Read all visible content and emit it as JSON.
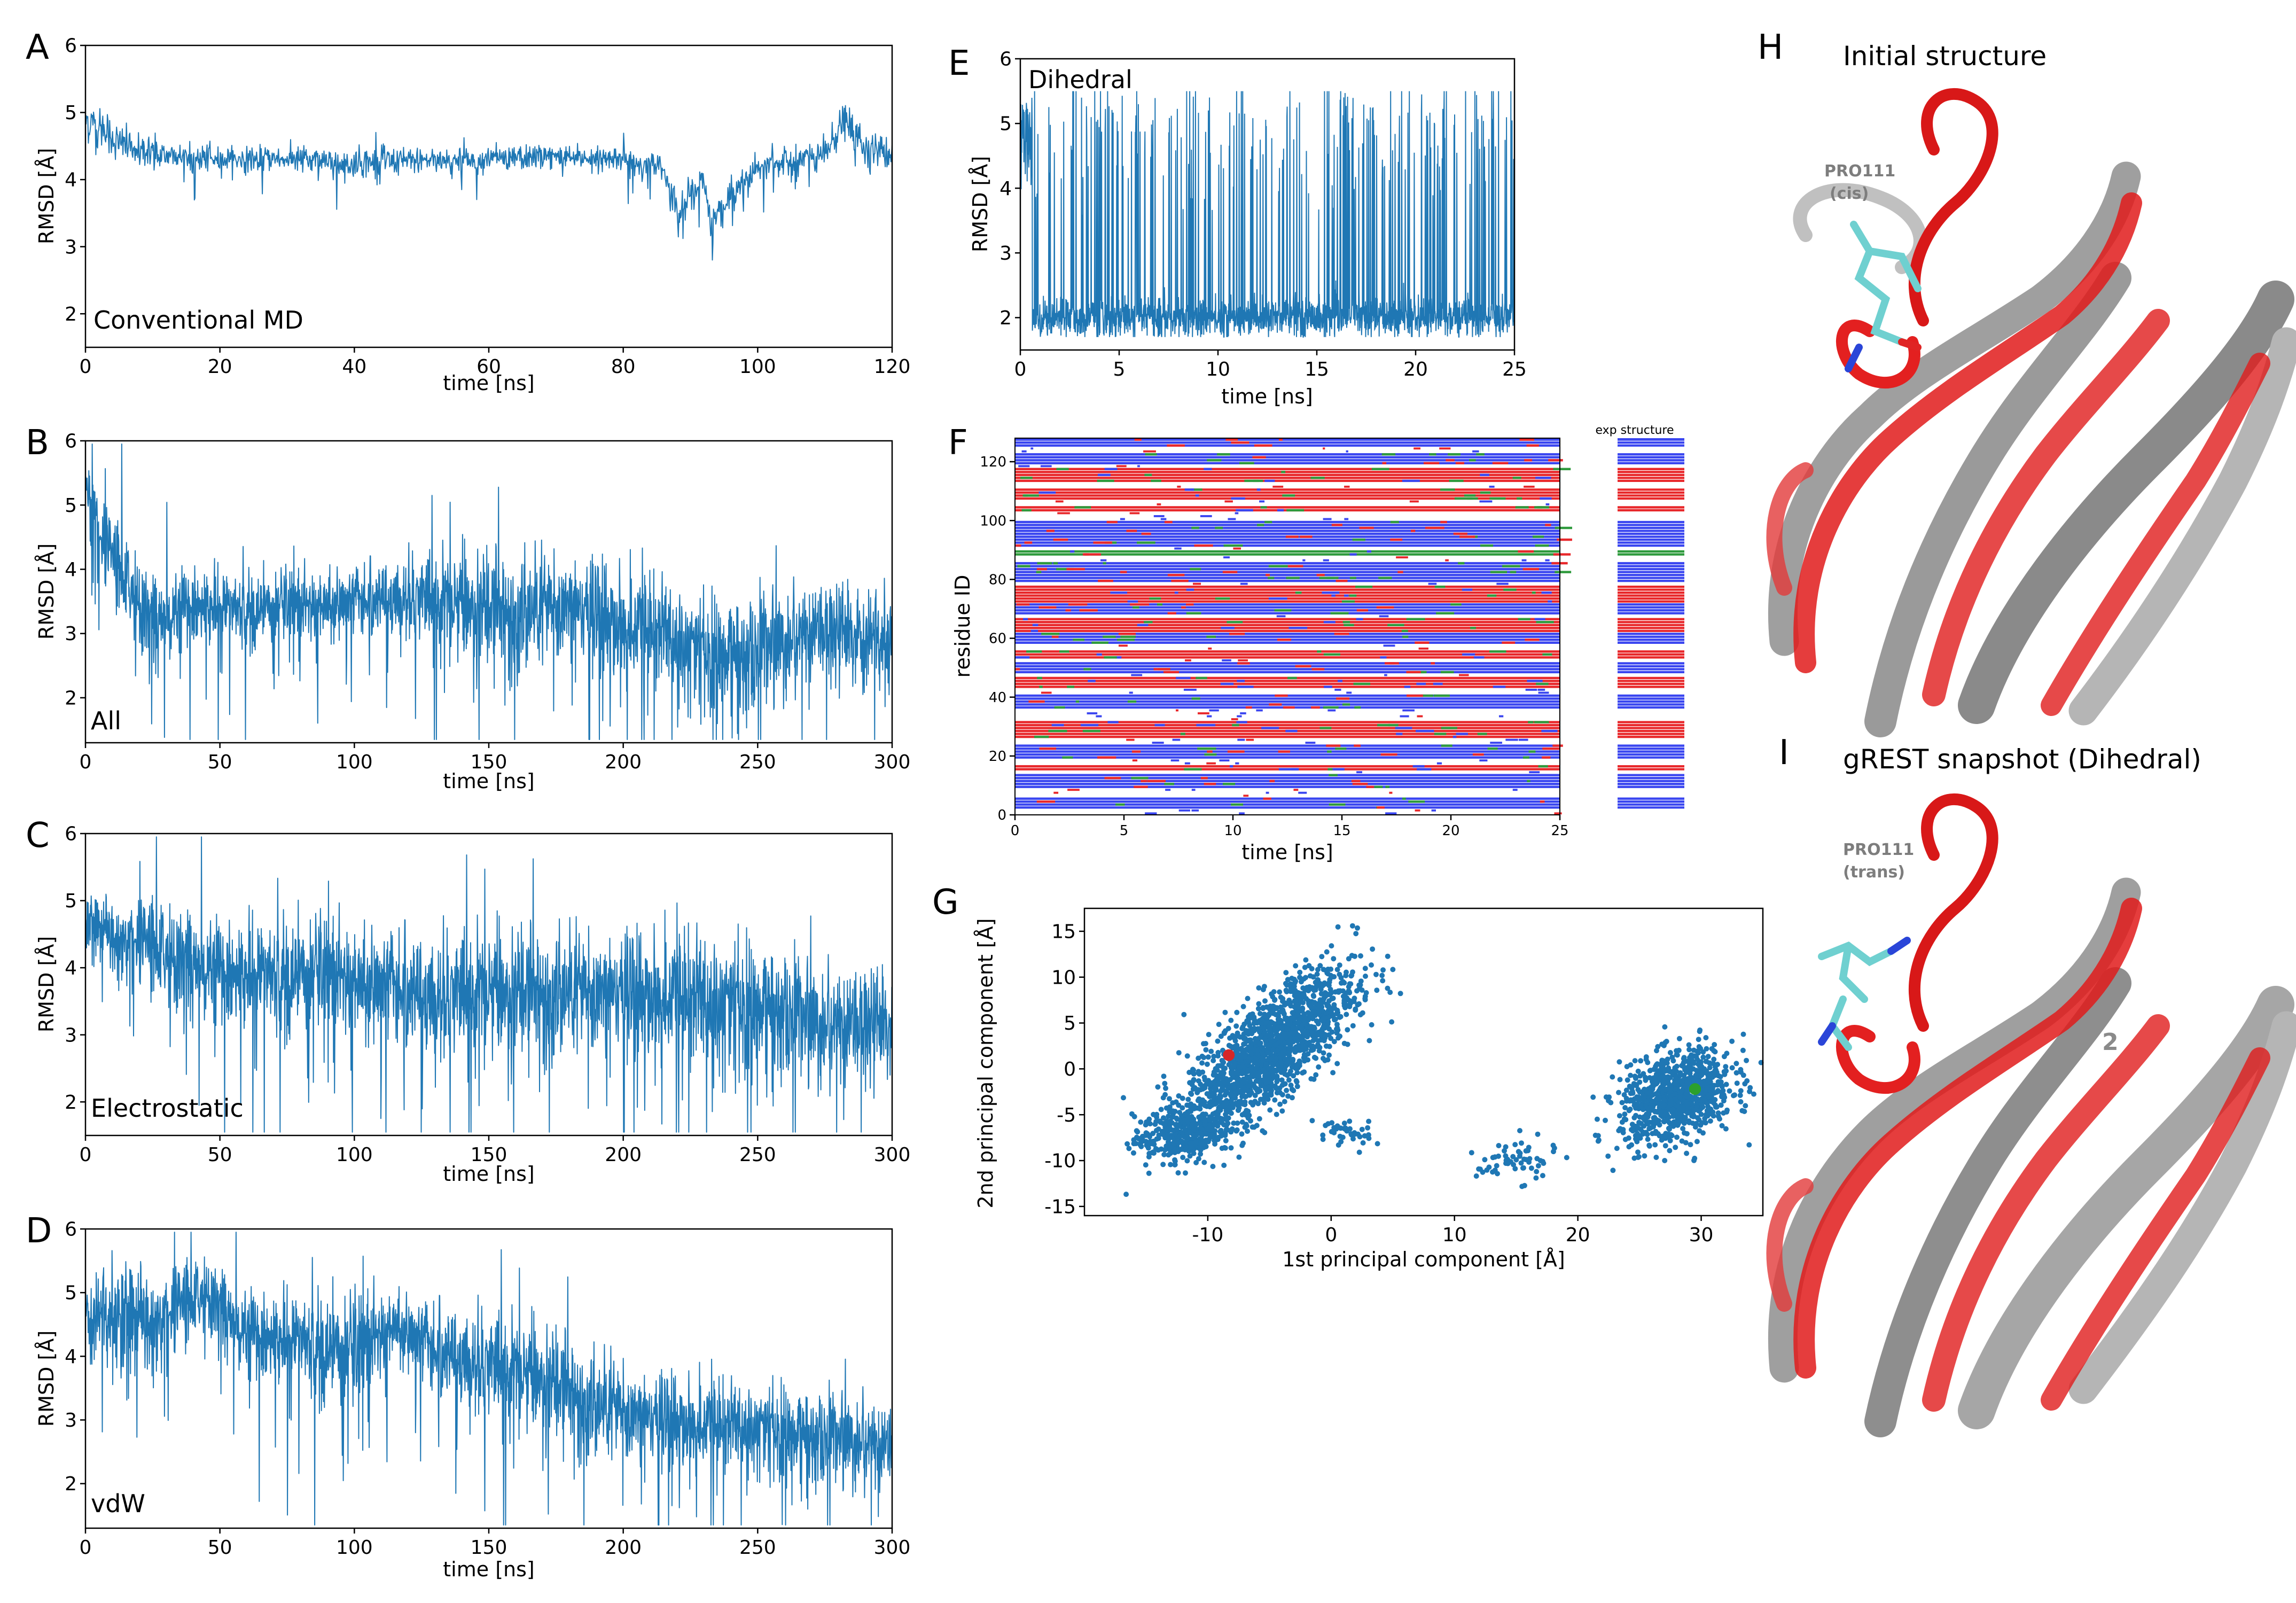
{
  "colors": {
    "line": "#1f77b4",
    "helix": "#e8282b",
    "strand": "#3a46f0",
    "turn": "#2e9a3c",
    "cis_point": "#d62728",
    "trans_point": "#2ca02c",
    "protein_gray": "#9a9a9a",
    "protein_red": "#e01b1b",
    "pro_cyan": "#6fd0d0"
  },
  "chart_data": [
    {
      "panel": "A",
      "type": "line",
      "annotation": "Conventional MD",
      "xlabel": "time [ns]",
      "ylabel": "RMSD [Å]",
      "xlim": [
        0,
        120
      ],
      "ylim": [
        1.5,
        6
      ],
      "xticks": [
        0,
        20,
        40,
        60,
        80,
        100,
        120
      ],
      "yticks": [
        2,
        3,
        4,
        5,
        6
      ],
      "x": [
        0,
        2,
        5,
        10,
        20,
        30,
        40,
        50,
        60,
        70,
        80,
        86,
        88,
        92,
        93,
        100,
        105,
        110,
        113,
        116,
        120
      ],
      "y": [
        4.9,
        4.75,
        4.55,
        4.4,
        4.3,
        4.3,
        4.25,
        4.3,
        4.3,
        4.35,
        4.3,
        4.2,
        3.5,
        4.0,
        3.4,
        4.2,
        4.3,
        4.4,
        4.9,
        4.5,
        4.35
      ],
      "band": [
        0.35,
        0.35,
        0.3,
        0.25,
        0.2,
        0.2,
        0.25,
        0.2,
        0.2,
        0.2,
        0.2,
        0.2,
        0.3,
        0.25,
        0.3,
        0.2,
        0.2,
        0.25,
        0.3,
        0.3,
        0.25
      ]
    },
    {
      "panel": "B",
      "type": "line",
      "annotation": "All",
      "xlabel": "time [ns]",
      "ylabel": "RMSD [Å]",
      "xlim": [
        0,
        300
      ],
      "ylim": [
        1.3,
        6
      ],
      "xticks": [
        0,
        50,
        100,
        150,
        200,
        250,
        300
      ],
      "yticks": [
        2,
        3,
        4,
        5,
        6
      ],
      "x": [
        0,
        5,
        15,
        25,
        40,
        60,
        80,
        100,
        120,
        140,
        160,
        180,
        200,
        215,
        230,
        245,
        255,
        270,
        290,
        300
      ],
      "y": [
        5.4,
        4.5,
        3.8,
        3.2,
        3.5,
        3.4,
        3.4,
        3.5,
        3.6,
        3.5,
        3.3,
        3.4,
        3.1,
        3.0,
        2.7,
        2.6,
        2.8,
        3.1,
        3.0,
        2.8
      ],
      "band": [
        0.6,
        0.7,
        0.7,
        0.8,
        0.7,
        0.6,
        0.6,
        0.6,
        0.7,
        0.9,
        1.0,
        0.9,
        1.0,
        0.9,
        0.9,
        1.0,
        1.0,
        0.8,
        0.8,
        1.0
      ]
    },
    {
      "panel": "C",
      "type": "line",
      "annotation": "Electrostatic",
      "xlabel": "time [ns]",
      "ylabel": "RMSD [Å]",
      "xlim": [
        0,
        300
      ],
      "ylim": [
        1.5,
        6
      ],
      "xticks": [
        0,
        50,
        100,
        150,
        200,
        250,
        300
      ],
      "yticks": [
        2,
        3,
        4,
        5,
        6
      ],
      "x": [
        0,
        10,
        30,
        50,
        80,
        100,
        130,
        150,
        180,
        200,
        230,
        250,
        270,
        290,
        300
      ],
      "y": [
        4.7,
        4.5,
        4.2,
        4.0,
        3.9,
        3.8,
        3.6,
        3.7,
        3.6,
        3.6,
        3.5,
        3.4,
        3.2,
        3.2,
        3.2
      ],
      "band": [
        0.4,
        0.6,
        0.8,
        0.9,
        0.9,
        0.9,
        1.0,
        1.0,
        1.0,
        1.0,
        1.1,
        1.0,
        1.0,
        0.9,
        0.8
      ]
    },
    {
      "panel": "D",
      "type": "line",
      "annotation": "vdW",
      "xlabel": "time [ns]",
      "ylabel": "RMSD [Å]",
      "xlim": [
        0,
        300
      ],
      "ylim": [
        1.3,
        6
      ],
      "xticks": [
        0,
        50,
        100,
        150,
        200,
        250,
        300
      ],
      "yticks": [
        2,
        3,
        4,
        5,
        6
      ],
      "x": [
        0,
        10,
        30,
        45,
        60,
        80,
        100,
        115,
        130,
        150,
        170,
        190,
        210,
        230,
        250,
        270,
        290,
        300
      ],
      "y": [
        4.7,
        4.6,
        4.6,
        5.0,
        4.4,
        4.3,
        4.0,
        4.5,
        4.1,
        3.9,
        3.7,
        3.2,
        3.0,
        2.9,
        2.9,
        2.7,
        2.7,
        2.6
      ],
      "band": [
        0.6,
        1.0,
        0.8,
        0.6,
        0.8,
        0.8,
        1.0,
        0.6,
        0.8,
        0.9,
        0.9,
        0.9,
        0.8,
        0.8,
        0.7,
        0.8,
        0.8,
        0.7
      ]
    },
    {
      "panel": "E",
      "type": "line",
      "annotation": "Dihedral",
      "xlabel": "time [ns]",
      "ylabel": "RMSD [Å]",
      "xlim": [
        0,
        25
      ],
      "ylim": [
        1.5,
        6
      ],
      "xticks": [
        0,
        5,
        10,
        15,
        20,
        25
      ],
      "yticks": [
        2,
        3,
        4,
        5,
        6
      ],
      "base": 2.0,
      "base_noise": 0.15,
      "spike_top": 4.8,
      "spike_top_noise": 0.6,
      "spike_prob": 0.55
    },
    {
      "panel": "F",
      "type": "heatmap",
      "xlabel": "time [ns]",
      "ylabel": "residue ID",
      "xlim": [
        0,
        25
      ],
      "ylim": [
        0,
        128
      ],
      "xticks": [
        0,
        5,
        10,
        15,
        20,
        25
      ],
      "yticks": [
        0,
        20,
        40,
        60,
        80,
        100,
        120
      ],
      "legend_title": "exp structure",
      "states": [
        "coil",
        "strand",
        "helix",
        "turn"
      ],
      "exp_structure": [
        {
          "start": 2,
          "end": 6,
          "state": "strand"
        },
        {
          "start": 9,
          "end": 14,
          "state": "strand"
        },
        {
          "start": 15,
          "end": 17,
          "state": "helix"
        },
        {
          "start": 19,
          "end": 24,
          "state": "strand"
        },
        {
          "start": 26,
          "end": 32,
          "state": "helix"
        },
        {
          "start": 36,
          "end": 41,
          "state": "strand"
        },
        {
          "start": 43,
          "end": 47,
          "state": "helix"
        },
        {
          "start": 48,
          "end": 52,
          "state": "strand"
        },
        {
          "start": 53,
          "end": 56,
          "state": "helix"
        },
        {
          "start": 58,
          "end": 62,
          "state": "strand"
        },
        {
          "start": 62,
          "end": 67,
          "state": "helix"
        },
        {
          "start": 68,
          "end": 72,
          "state": "strand"
        },
        {
          "start": 72,
          "end": 78,
          "state": "helix"
        },
        {
          "start": 79,
          "end": 86,
          "state": "strand"
        },
        {
          "start": 88,
          "end": 90,
          "state": "turn"
        },
        {
          "start": 91,
          "end": 100,
          "state": "strand"
        },
        {
          "start": 103,
          "end": 105,
          "state": "helix"
        },
        {
          "start": 107,
          "end": 111,
          "state": "helix"
        },
        {
          "start": 113,
          "end": 118,
          "state": "helix"
        },
        {
          "start": 119,
          "end": 123,
          "state": "strand"
        },
        {
          "start": 125,
          "end": 128,
          "state": "strand"
        }
      ]
    },
    {
      "panel": "G",
      "type": "scatter",
      "xlabel": "1st principal component [Å]",
      "ylabel": "2nd principal component [Å]",
      "xlim": [
        -20,
        35
      ],
      "ylim": [
        -16,
        17.5
      ],
      "xticks": [
        -10,
        0,
        10,
        20,
        30
      ],
      "yticks": [
        -15,
        -10,
        -5,
        0,
        5,
        10,
        15
      ],
      "clusters": [
        {
          "cx": -5,
          "cy": 2,
          "sx": 3.5,
          "sy": 4.5,
          "rho": 0.75,
          "n": 1500
        },
        {
          "cx": -12,
          "cy": -7,
          "sx": 2.0,
          "sy": 1.5,
          "rho": 0.3,
          "n": 350
        },
        {
          "cx": 28,
          "cy": -3,
          "sx": 2.3,
          "sy": 2.5,
          "rho": 0.3,
          "n": 900
        },
        {
          "cx": 15,
          "cy": -10,
          "sx": 1.6,
          "sy": 1.2,
          "rho": 0.2,
          "n": 60
        },
        {
          "cx": 1,
          "cy": -7,
          "sx": 1.2,
          "sy": 1.0,
          "rho": 0.0,
          "n": 40
        }
      ],
      "highlight_points": [
        {
          "name": "initial (cis)",
          "x": -8.3,
          "y": 1.5
        },
        {
          "name": "gREST snapshot (trans)",
          "x": 29.5,
          "y": -2.2
        }
      ]
    }
  ],
  "structures": [
    {
      "panel": "H",
      "title": "Initial structure",
      "residue": "PRO111",
      "conformation": "(cis)"
    },
    {
      "panel": "I",
      "title": "gREST snapshot (Dihedral)",
      "residue": "PRO111",
      "conformation": "(trans)",
      "strand_number": "2"
    }
  ]
}
